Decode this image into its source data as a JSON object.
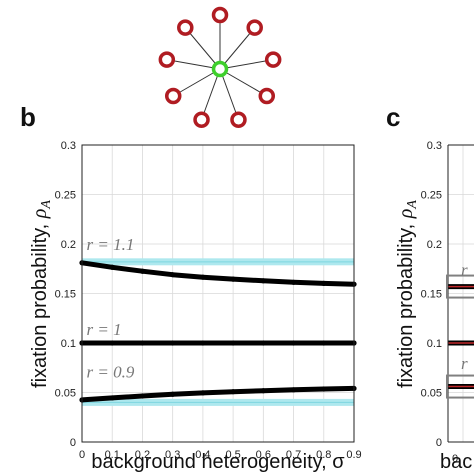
{
  "colors": {
    "leaf_node": "#b01c22",
    "center_node": "#3ecf2c",
    "series_line": "#000000",
    "band": "#aee8ee",
    "highlight_box": "#808080",
    "red_line": "#c0282a",
    "r_label": "#777777"
  },
  "panels": {
    "b": "b",
    "c": "c"
  },
  "chart_data": [
    {
      "type": "line",
      "panel": "b",
      "xlabel": "background heterogeneity, σ",
      "ylabel_main": "fixation probability, ",
      "ylabel_symbol": "ρ",
      "ylabel_subscript": "A",
      "xlim": [
        0,
        0.9
      ],
      "ylim": [
        0,
        0.3
      ],
      "xticks": [
        "0",
        "0.1",
        "0.2",
        "0.3",
        "0.4",
        "0.5",
        "0.6",
        "0.7",
        "0.8",
        "0.9"
      ],
      "yticks": [
        "0",
        "0.05",
        "0.1",
        "0.15",
        "0.2",
        "0.25",
        "0.3"
      ],
      "grid": true,
      "series": [
        {
          "name": "r = 1.1",
          "x": [
            0,
            0.1,
            0.2,
            0.3,
            0.4,
            0.5,
            0.6,
            0.7,
            0.8,
            0.9
          ],
          "y": [
            0.181,
            0.1765,
            0.1725,
            0.169,
            0.1665,
            0.1645,
            0.1628,
            0.1613,
            0.1602,
            0.1594
          ]
        },
        {
          "name": "r = 1",
          "x": [
            0,
            0.1,
            0.2,
            0.3,
            0.4,
            0.5,
            0.6,
            0.7,
            0.8,
            0.9
          ],
          "y": [
            0.1,
            0.1,
            0.1,
            0.1,
            0.1,
            0.1,
            0.1,
            0.1,
            0.1,
            0.1
          ]
        },
        {
          "name": "r = 0.9",
          "x": [
            0,
            0.1,
            0.2,
            0.3,
            0.4,
            0.5,
            0.6,
            0.7,
            0.8,
            0.9
          ],
          "y": [
            0.0425,
            0.0445,
            0.0465,
            0.0482,
            0.0496,
            0.0508,
            0.0518,
            0.0527,
            0.0535,
            0.0541
          ]
        }
      ],
      "bands": [
        {
          "y": 0.182,
          "xrange": [
            0,
            0.9
          ]
        },
        {
          "y": 0.04,
          "xrange": [
            0,
            0.9
          ]
        }
      ],
      "annotations": [
        "r = 1.1",
        "r = 1",
        "r = 0.9"
      ]
    },
    {
      "type": "line",
      "panel": "c",
      "partial": true,
      "ylabel_main": "fixation probability, ",
      "ylabel_symbol": "ρ",
      "ylabel_subscript": "A",
      "xlabel_visible": "bac",
      "ylim": [
        0,
        0.3
      ],
      "yticks": [
        "0",
        "0.05",
        "0.1",
        "0.15",
        "0.2",
        "0.25",
        "0.3"
      ],
      "x_first_tick": "0",
      "annotations": [
        "r",
        "r"
      ],
      "series_y": [
        0.157,
        0.1,
        0.056
      ]
    }
  ]
}
